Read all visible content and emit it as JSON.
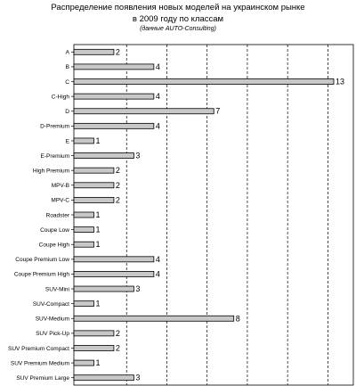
{
  "chart_data": {
    "type": "bar",
    "orientation": "horizontal",
    "title_lines": [
      "Распределение появления новых моделей на украинском рынке",
      "в 2009 году по классам"
    ],
    "subtitle": "(данные AUTO-Consulting)",
    "categories": [
      "A",
      "B",
      "C",
      "C-High",
      "D",
      "D-Premium",
      "E",
      "E-Premium",
      "High Premium",
      "MPV-B",
      "MPV-C",
      "Roadster",
      "Coupe Low",
      "Coupe High",
      "Coupe Premium Low",
      "Coupe Premium High",
      "SUV-Mini",
      "SUV-Compact",
      "SUV-Medium",
      "SUV Pick-Up",
      "SUV Premium Compact",
      "SUV Premium Medium",
      "SUV Premium Large"
    ],
    "values": [
      2,
      4,
      13,
      4,
      7,
      4,
      1,
      3,
      2,
      2,
      2,
      1,
      1,
      1,
      4,
      4,
      3,
      1,
      8,
      2,
      2,
      1,
      3
    ],
    "xlim": [
      0,
      13
    ],
    "grid": true,
    "gridline_style": "dashed",
    "legend": "none",
    "bar_color": "#c8c8c8",
    "bar_stroke": "#000000"
  }
}
